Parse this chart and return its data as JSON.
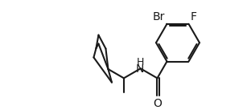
{
  "background": "#ffffff",
  "line_color": "#1a1a1a",
  "line_width": 1.5,
  "font_size_atom": 10,
  "dpi": 100,
  "figw": 3.07,
  "figh": 1.37,
  "xlim": [
    0.0,
    9.5
  ],
  "ylim": [
    0.0,
    4.2
  ]
}
